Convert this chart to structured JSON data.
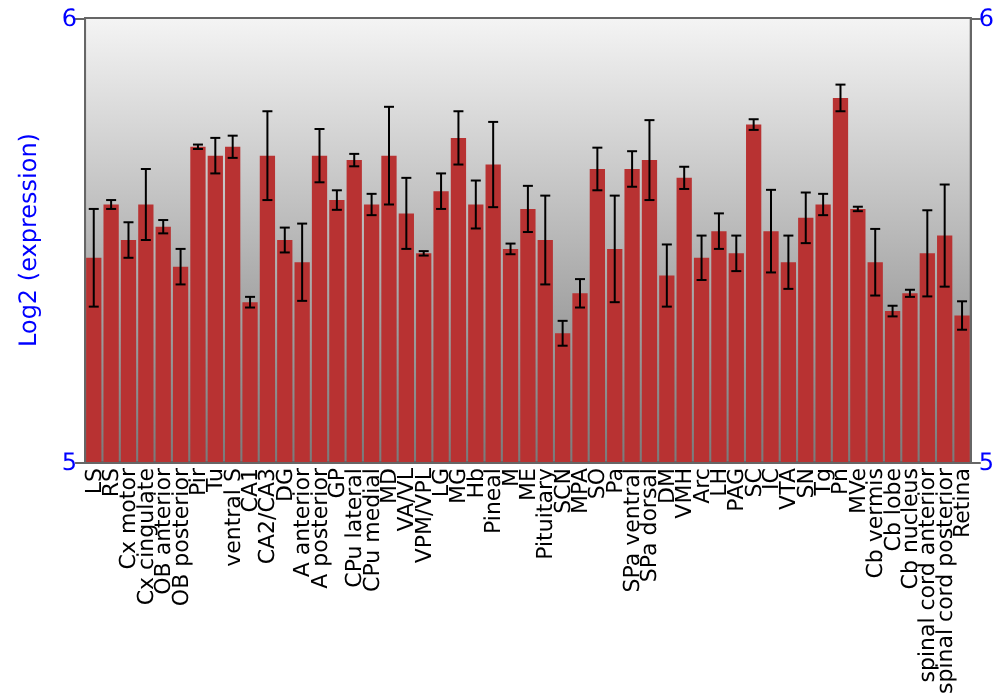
{
  "chart_data": {
    "type": "bar",
    "ylabel": "Log2 (expression)",
    "categories": [
      "LS",
      "RS",
      "Cx motor",
      "Cx cingulate",
      "OB anterior",
      "OB posterior",
      "Pir",
      "Tu",
      "ventral S",
      "CA1",
      "CA2/CA3",
      "DG",
      "A anterior",
      "A posterior",
      "GP",
      "CPu lateral",
      "CPu medial",
      "MD",
      "VA/VL",
      "VPM/VPL",
      "LG",
      "MG",
      "Hb",
      "Pineal",
      "M",
      "ME",
      "Pituitary",
      "SCN",
      "MPA",
      "SO",
      "Pa",
      "SPa ventral",
      "SPa dorsal",
      "DM",
      "VMH",
      "Arc",
      "LH",
      "PAG",
      "SC",
      "IC",
      "VTA",
      "SN",
      "Tg",
      "Pn",
      "MVe",
      "Cb vermis",
      "Cb lobe",
      "Cb nucleus",
      "spinal cord anterior",
      "spinal cord posterior",
      "Retina"
    ],
    "values": [
      5.46,
      5.58,
      5.5,
      5.58,
      5.53,
      5.44,
      5.71,
      5.69,
      5.71,
      5.36,
      5.69,
      5.5,
      5.45,
      5.69,
      5.59,
      5.68,
      5.58,
      5.69,
      5.56,
      5.47,
      5.61,
      5.73,
      5.58,
      5.67,
      5.48,
      5.57,
      5.5,
      5.29,
      5.38,
      5.66,
      5.48,
      5.66,
      5.68,
      5.42,
      5.64,
      5.46,
      5.52,
      5.47,
      5.76,
      5.52,
      5.45,
      5.55,
      5.58,
      5.82,
      5.57,
      5.45,
      5.34,
      5.38,
      5.47,
      5.51,
      5.33
    ],
    "errors": [
      0.11,
      0.01,
      0.04,
      0.08,
      0.015,
      0.04,
      0.005,
      0.04,
      0.025,
      0.012,
      0.1,
      0.028,
      0.087,
      0.06,
      0.022,
      0.014,
      0.024,
      0.11,
      0.08,
      0.005,
      0.04,
      0.06,
      0.054,
      0.096,
      0.012,
      0.052,
      0.1,
      0.028,
      0.032,
      0.048,
      0.12,
      0.04,
      0.09,
      0.07,
      0.025,
      0.05,
      0.04,
      0.04,
      0.012,
      0.093,
      0.06,
      0.057,
      0.024,
      0.03,
      0.005,
      0.075,
      0.012,
      0.008,
      0.097,
      0.115,
      0.032
    ],
    "color": "#b83232",
    "ylim": [
      5,
      6
    ],
    "yticks": [
      5,
      6
    ],
    "y2lim": [
      5,
      6
    ],
    "y2ticks": [
      5,
      6
    ],
    "grid": false
  }
}
